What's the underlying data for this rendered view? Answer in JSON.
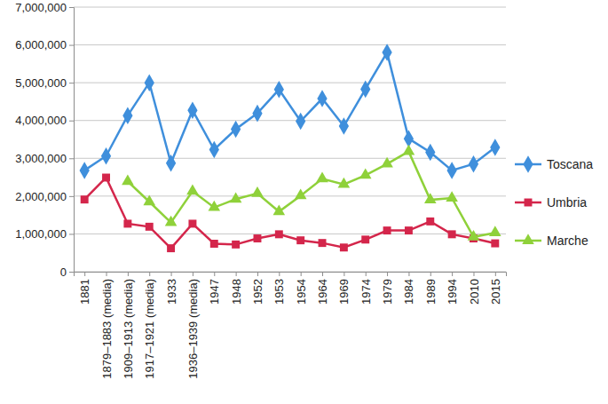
{
  "chart_data": {
    "type": "line",
    "categories": [
      "1881",
      "1879–1883 (media)",
      "1909–1913 (media)",
      "1917–1921 (media)",
      "1933",
      "1936–1939 (media)",
      "1947",
      "1948",
      "1952",
      "1953",
      "1954",
      "1964",
      "1969",
      "1974",
      "1979",
      "1984",
      "1989",
      "1994",
      "2010",
      "2015"
    ],
    "series": [
      {
        "name": "Toscana",
        "color": "#3f8fdc",
        "marker": "diamond",
        "values": [
          2680000,
          3060000,
          4130000,
          5000000,
          2870000,
          4270000,
          3230000,
          3770000,
          4190000,
          4820000,
          3980000,
          4580000,
          3850000,
          4830000,
          5800000,
          3520000,
          3160000,
          2680000,
          2850000,
          3290000
        ]
      },
      {
        "name": "Umbria",
        "color": "#d4264b",
        "marker": "square",
        "values": [
          1910000,
          2490000,
          1270000,
          1190000,
          620000,
          1270000,
          740000,
          720000,
          880000,
          990000,
          830000,
          760000,
          640000,
          850000,
          1090000,
          1090000,
          1330000,
          990000,
          880000,
          750000
        ]
      },
      {
        "name": "Marche",
        "color": "#8fd13a",
        "marker": "triangle",
        "values": [
          null,
          null,
          2390000,
          1850000,
          1300000,
          2130000,
          1700000,
          1920000,
          2070000,
          1590000,
          2010000,
          2460000,
          2310000,
          2550000,
          2850000,
          3180000,
          1900000,
          1950000,
          920000,
          1030000
        ]
      }
    ],
    "ylim": [
      0,
      7000000
    ],
    "yticks": [
      0,
      {
        "value": 1000000,
        "label": "1,000,000"
      },
      {
        "value": 2000000,
        "label": "2,000,000"
      },
      {
        "value": 3000000,
        "label": "3,000,000"
      },
      {
        "value": 4000000,
        "label": "4,000,000"
      },
      {
        "value": 5000000,
        "label": "5,000,000"
      },
      {
        "value": 6000000,
        "label": "6,000,000"
      },
      {
        "value": 7000000,
        "label": "7,000,000"
      }
    ],
    "grid": true,
    "legend": "right"
  }
}
